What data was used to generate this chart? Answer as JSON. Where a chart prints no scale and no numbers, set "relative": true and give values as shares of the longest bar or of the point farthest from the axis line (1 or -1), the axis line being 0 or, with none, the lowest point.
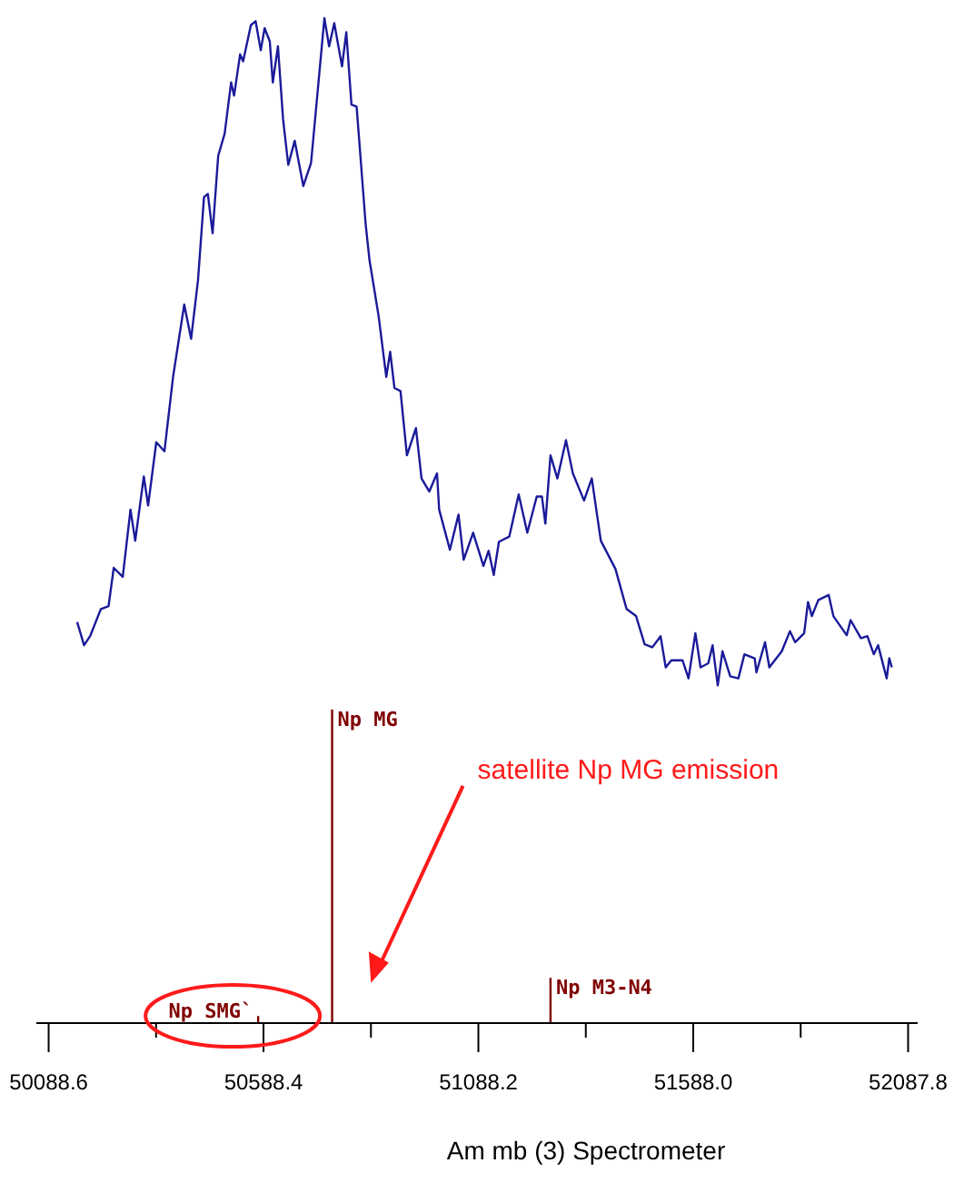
{
  "chart_data": {
    "type": "line",
    "xlabel": "Am mb (3) Spectrometer",
    "relative": true,
    "xlim": [
      50060,
      52110
    ],
    "xticks": [
      50088.6,
      {
        "value": 50338.5,
        "label": null
      },
      50588.4,
      {
        "value": 50838.3,
        "label": null
      },
      51088.2,
      {
        "value": 51338.1,
        "label": null
      },
      {
        "value": 51588.0,
        "label": "51588.0"
      },
      {
        "value": 51837.9,
        "label": null
      },
      52087.8
    ],
    "grid": false,
    "annotations": [
      "satellite Np MG emission",
      {
        "text": "Np SMG`",
        "x": 50576,
        "y": 0.007
      },
      {
        "text": "Np MG",
        "x": 50748,
        "y": 0.312
      },
      {
        "text": "Np M3-N4",
        "x": 51256,
        "y": 0.045
      }
    ],
    "series": [
      {
        "color": "#1a1a9a",
        "x": [
          50155,
          50171,
          50185,
          50210,
          50228,
          50240,
          50261,
          50279,
          50290,
          50310,
          50320,
          50339,
          50358,
          50378,
          50404,
          50420,
          50436,
          50450,
          50459,
          50470,
          50483,
          50498,
          50513,
          50520,
          50534,
          50541,
          50559,
          50570,
          50582,
          50591,
          50603,
          50610,
          50622,
          50634,
          50646,
          50661,
          50681,
          50699,
          50715,
          50730,
          50741,
          50753,
          50771,
          50781,
          50793,
          50805,
          50826,
          50835,
          50856,
          50874,
          50883,
          50893,
          50907,
          50922,
          50943,
          50956,
          50974,
          50992,
          50997,
          51022,
          51042,
          51054,
          51076,
          51100,
          51112,
          51124,
          51136,
          51160,
          51182,
          51202,
          51224,
          51236,
          51244,
          51256,
          51272,
          51292,
          51308,
          51334,
          51352,
          51373,
          51407,
          51433,
          51455,
          51475,
          51493,
          51512,
          51524,
          51537,
          51563,
          51577,
          51593,
          51605,
          51623,
          51633,
          51645,
          51656,
          51674,
          51693,
          51707,
          51731,
          51735,
          51755,
          51765,
          51794,
          51813,
          51825,
          51846,
          51855,
          51864,
          51879,
          51903,
          51914,
          51945,
          51954,
          51978,
          51993,
          52008,
          52018,
          52038,
          52044,
          52050
        ],
        "values": [
          0.399,
          0.376,
          0.385,
          0.412,
          0.415,
          0.453,
          0.444,
          0.511,
          0.48,
          0.544,
          0.515,
          0.578,
          0.569,
          0.643,
          0.715,
          0.681,
          0.739,
          0.822,
          0.825,
          0.786,
          0.863,
          0.885,
          0.936,
          0.923,
          0.964,
          0.957,
          0.993,
          0.997,
          0.968,
          0.99,
          0.977,
          0.936,
          0.972,
          0.899,
          0.854,
          0.878,
          0.833,
          0.856,
          0.93,
          1.0,
          0.972,
          0.995,
          0.952,
          0.986,
          0.914,
          0.912,
          0.795,
          0.759,
          0.704,
          0.643,
          0.668,
          0.632,
          0.629,
          0.565,
          0.592,
          0.542,
          0.529,
          0.547,
          0.511,
          0.471,
          0.506,
          0.461,
          0.488,
          0.455,
          0.47,
          0.446,
          0.479,
          0.484,
          0.526,
          0.488,
          0.524,
          0.524,
          0.497,
          0.565,
          0.542,
          0.58,
          0.547,
          0.52,
          0.542,
          0.48,
          0.452,
          0.412,
          0.405,
          0.377,
          0.374,
          0.385,
          0.354,
          0.361,
          0.361,
          0.343,
          0.388,
          0.354,
          0.358,
          0.376,
          0.336,
          0.37,
          0.345,
          0.343,
          0.367,
          0.363,
          0.349,
          0.379,
          0.354,
          0.37,
          0.39,
          0.379,
          0.388,
          0.419,
          0.405,
          0.421,
          0.426,
          0.405,
          0.386,
          0.401,
          0.383,
          0.385,
          0.367,
          0.376,
          0.343,
          0.363,
          0.354
        ]
      },
      {
        "type": "bar",
        "color": "#800000",
        "x": [
          50576,
          50748,
          51256
        ],
        "values": [
          0.007,
          0.312,
          0.045
        ]
      }
    ]
  }
}
